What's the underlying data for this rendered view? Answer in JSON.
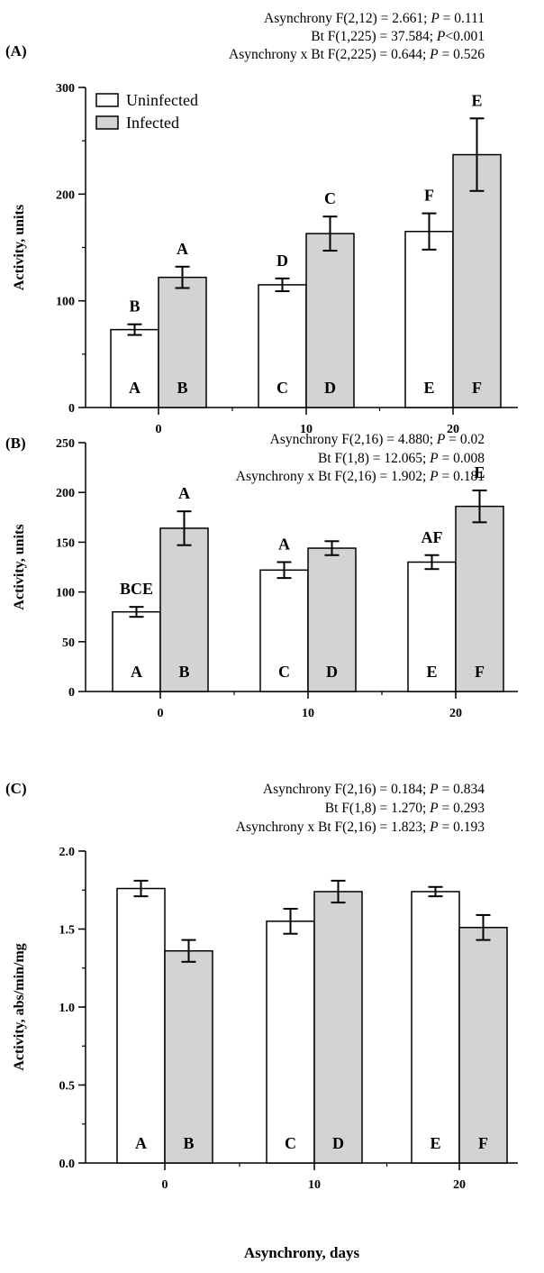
{
  "chart_data": [
    {
      "type": "bar",
      "panel_label": "(A)",
      "stats": [
        {
          "pre": "Asynchrony F(2,12) = 2.661; ",
          "p": "P",
          "post": " = 0.111"
        },
        {
          "pre": "Bt F(1,225) = 37.584; ",
          "p": "P",
          "post": "<0.001"
        },
        {
          "pre": "Asynchrony x Bt F(2,225) = 0.644; ",
          "p": "P",
          "post": " = 0.526"
        }
      ],
      "ylabel": "Activity, units",
      "ylim": [
        0,
        300
      ],
      "yticks": [
        0,
        100,
        200,
        300
      ],
      "minor_step": 50,
      "categories": [
        "0",
        "10",
        "20"
      ],
      "series": [
        {
          "name": "Uninfected",
          "color": "#ffffff",
          "values": [
            73,
            115,
            165
          ],
          "errors": [
            5,
            6,
            17
          ],
          "top_letters": [
            "B",
            "D",
            "F"
          ],
          "inner_letters": [
            "A",
            "C",
            "E"
          ]
        },
        {
          "name": "Infected",
          "color": "#d3d3d3",
          "values": [
            122,
            163,
            237
          ],
          "errors": [
            10,
            16,
            34
          ],
          "top_letters": [
            "A",
            "C",
            "E"
          ],
          "inner_letters": [
            "B",
            "D",
            "F"
          ]
        }
      ],
      "legend": true,
      "legend_position": "top-left",
      "grid": false
    },
    {
      "type": "bar",
      "panel_label": "(B)",
      "stats": [
        {
          "pre": "Asynchrony F(2,16) = 4.880; ",
          "p": "P",
          "post": " = 0.02"
        },
        {
          "pre": "Bt F(1,8) = 12.065; ",
          "p": "P",
          "post": " = 0.008"
        },
        {
          "pre": "Asynchrony x Bt F(2,16) = 1.902; ",
          "p": "P",
          "post": " = 0.181"
        }
      ],
      "ylabel": "Activity, units",
      "ylim": [
        0,
        250
      ],
      "yticks": [
        0,
        50,
        100,
        150,
        200,
        250
      ],
      "minor_step": null,
      "categories": [
        "0",
        "10",
        "20"
      ],
      "series": [
        {
          "name": "Uninfected",
          "color": "#ffffff",
          "values": [
            80,
            122,
            130
          ],
          "errors": [
            5,
            8,
            7
          ],
          "top_letters": [
            "BCE",
            "A",
            "AF"
          ],
          "inner_letters": [
            "A",
            "C",
            "E"
          ]
        },
        {
          "name": "Infected",
          "color": "#d3d3d3",
          "values": [
            164,
            144,
            186
          ],
          "errors": [
            17,
            7,
            16
          ],
          "top_letters": [
            "A",
            "",
            "E"
          ],
          "inner_letters": [
            "B",
            "D",
            "F"
          ]
        }
      ],
      "legend": false,
      "grid": false
    },
    {
      "type": "bar",
      "panel_label": "(C)",
      "stats": [
        {
          "pre": "Asynchrony F(2,16) = 0.184; ",
          "p": "P",
          "post": " = 0.834"
        },
        {
          "pre": "Bt F(1,8) = 1.270; ",
          "p": "P",
          "post": " = 0.293"
        },
        {
          "pre": "Asynchrony x Bt F(2,16) = 1.823; ",
          "p": "P",
          "post": " = 0.193"
        }
      ],
      "ylabel": "Activity, abs/min/mg",
      "ylim": [
        0,
        2.0
      ],
      "yticks": [
        "0.0",
        "0.5",
        "1.0",
        "1.5",
        "2.0"
      ],
      "minor_step": 0.25,
      "categories": [
        "0",
        "10",
        "20"
      ],
      "series": [
        {
          "name": "Uninfected",
          "color": "#ffffff",
          "values": [
            1.76,
            1.55,
            1.74
          ],
          "errors": [
            0.05,
            0.08,
            0.03
          ],
          "top_letters": [
            "",
            "",
            ""
          ],
          "inner_letters": [
            "A",
            "C",
            "E"
          ]
        },
        {
          "name": "Infected",
          "color": "#d3d3d3",
          "values": [
            1.36,
            1.74,
            1.51
          ],
          "errors": [
            0.07,
            0.07,
            0.08
          ],
          "top_letters": [
            "",
            "",
            ""
          ],
          "inner_letters": [
            "B",
            "D",
            "F"
          ]
        }
      ],
      "legend": false,
      "grid": false,
      "xlabel": "Asynchrony, days"
    }
  ]
}
